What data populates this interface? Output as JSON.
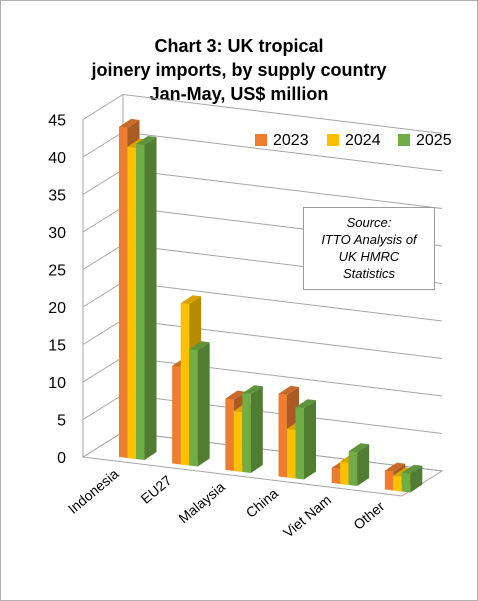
{
  "chart_data": {
    "type": "bar",
    "title_lines": [
      "Chart 3: UK tropical",
      "joinery imports, by supply country",
      "Jan-May, US$ million"
    ],
    "categories": [
      "Indonesia",
      "EU27",
      "Malaysia",
      "China",
      "Viet Nam",
      "Other"
    ],
    "series": [
      {
        "name": "2023",
        "color": "#ED7D31",
        "values": [
          44.0,
          13.0,
          9.5,
          11.0,
          2.0,
          2.5
        ]
      },
      {
        "name": "2024",
        "color": "#FFC000",
        "values": [
          41.5,
          21.5,
          8.0,
          6.5,
          3.0,
          2.0
        ]
      },
      {
        "name": "2025",
        "color": "#70AD47",
        "values": [
          42.0,
          15.5,
          10.5,
          9.5,
          4.5,
          2.5
        ]
      }
    ],
    "ylim": [
      0,
      45
    ],
    "yticks": [
      "0",
      "5",
      "10",
      "15",
      "20",
      "25",
      "30",
      "35",
      "40",
      "45"
    ],
    "grid": true,
    "legend_position": "top-right",
    "source_lines": [
      "Source:",
      "ITTO Analysis of",
      "UK HMRC",
      "Statistics"
    ]
  }
}
